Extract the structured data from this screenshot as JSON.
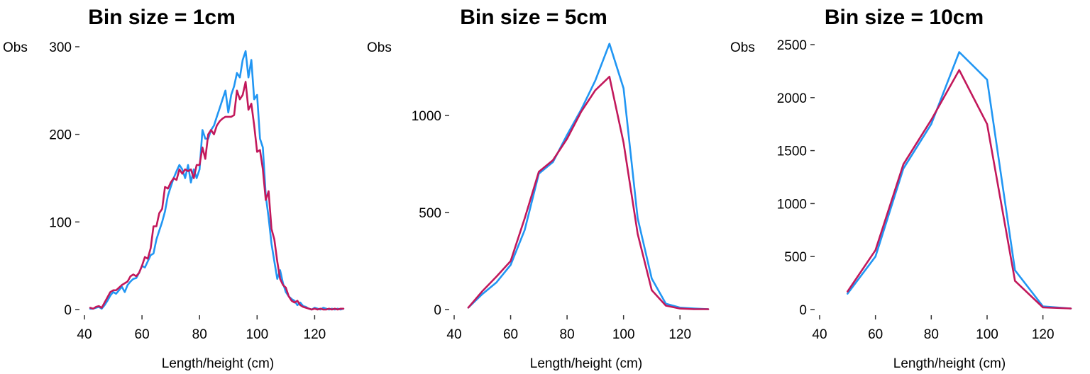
{
  "colors": {
    "series_blue": "#2196F3",
    "series_red": "#C2185B"
  },
  "chart_data": [
    {
      "type": "line",
      "title": "Bin size = 1cm",
      "xlabel": "Length/height (cm)",
      "ylabel": "Obs",
      "xlim": [
        40,
        131
      ],
      "ylim": [
        0,
        300
      ],
      "xticks": [
        40,
        60,
        80,
        100,
        120
      ],
      "yticks": [
        0,
        100,
        200,
        300
      ],
      "grid": false,
      "legend": "none",
      "series": [
        {
          "color": "#2196F3",
          "x": [
            42,
            43,
            44,
            45,
            46,
            47,
            48,
            49,
            50,
            51,
            52,
            53,
            54,
            55,
            56,
            57,
            58,
            59,
            60,
            61,
            62,
            63,
            64,
            65,
            66,
            67,
            68,
            69,
            70,
            71,
            72,
            73,
            74,
            75,
            76,
            77,
            78,
            79,
            80,
            81,
            82,
            83,
            84,
            85,
            86,
            87,
            88,
            89,
            90,
            91,
            92,
            93,
            94,
            95,
            96,
            97,
            98,
            99,
            100,
            101,
            102,
            103,
            104,
            105,
            106,
            107,
            108,
            109,
            110,
            111,
            112,
            113,
            114,
            115,
            116,
            117,
            118,
            119,
            120,
            121,
            122,
            123,
            124,
            125,
            126,
            127,
            128,
            129,
            130
          ],
          "y": [
            1,
            1,
            2,
            3,
            1,
            5,
            10,
            16,
            20,
            18,
            22,
            26,
            20,
            28,
            32,
            35,
            36,
            42,
            50,
            48,
            55,
            62,
            64,
            80,
            90,
            100,
            112,
            130,
            140,
            150,
            158,
            165,
            160,
            150,
            165,
            145,
            160,
            150,
            160,
            205,
            195,
            195,
            205,
            210,
            220,
            230,
            240,
            250,
            225,
            245,
            255,
            270,
            265,
            285,
            295,
            265,
            285,
            240,
            245,
            195,
            185,
            130,
            105,
            75,
            55,
            35,
            45,
            30,
            20,
            15,
            12,
            10,
            5,
            8,
            4,
            3,
            1,
            0,
            2,
            1,
            0,
            2,
            1,
            0,
            1,
            0,
            1,
            0,
            1
          ]
        },
        {
          "color": "#C2185B",
          "x": [
            42,
            43,
            44,
            45,
            46,
            47,
            48,
            49,
            50,
            51,
            52,
            53,
            54,
            55,
            56,
            57,
            58,
            59,
            60,
            61,
            62,
            63,
            64,
            65,
            66,
            67,
            68,
            69,
            70,
            71,
            72,
            73,
            74,
            75,
            76,
            77,
            78,
            79,
            80,
            81,
            82,
            83,
            84,
            85,
            86,
            87,
            88,
            89,
            90,
            91,
            92,
            93,
            94,
            95,
            96,
            97,
            98,
            99,
            100,
            101,
            102,
            103,
            104,
            105,
            106,
            107,
            108,
            109,
            110,
            111,
            112,
            113,
            114,
            115,
            116,
            117,
            118,
            119,
            120,
            121,
            122,
            123,
            124,
            125,
            126,
            127,
            128,
            129,
            130
          ],
          "y": [
            2,
            1,
            3,
            4,
            2,
            8,
            14,
            20,
            22,
            22,
            25,
            28,
            30,
            32,
            38,
            40,
            38,
            42,
            50,
            60,
            58,
            70,
            95,
            95,
            110,
            115,
            140,
            138,
            145,
            150,
            148,
            160,
            155,
            160,
            158,
            160,
            150,
            165,
            165,
            185,
            172,
            200,
            205,
            200,
            210,
            215,
            218,
            220,
            220,
            220,
            222,
            250,
            240,
            245,
            260,
            228,
            235,
            210,
            180,
            182,
            160,
            125,
            135,
            92,
            80,
            55,
            35,
            28,
            25,
            15,
            10,
            8,
            10,
            5,
            3,
            2,
            1,
            0,
            1,
            0,
            1,
            0,
            0,
            1,
            0,
            1,
            0,
            1,
            1
          ]
        }
      ]
    },
    {
      "type": "line",
      "title": "Bin size = 5cm",
      "xlabel": "Length/height (cm)",
      "ylabel": "Obs",
      "xlim": [
        40,
        130
      ],
      "ylim": [
        0,
        1420
      ],
      "xticks": [
        40,
        60,
        80,
        100,
        120
      ],
      "yticks": [
        0,
        500,
        1000
      ],
      "grid": false,
      "legend": "none",
      "series": [
        {
          "color": "#2196F3",
          "x": [
            45,
            50,
            55,
            60,
            65,
            70,
            75,
            80,
            85,
            90,
            95,
            100,
            105,
            110,
            115,
            120,
            125,
            130
          ],
          "y": [
            10,
            80,
            140,
            230,
            410,
            700,
            760,
            900,
            1030,
            1180,
            1370,
            1140,
            470,
            160,
            30,
            10,
            5,
            2
          ]
        },
        {
          "color": "#C2185B",
          "x": [
            45,
            50,
            55,
            60,
            65,
            70,
            75,
            80,
            85,
            90,
            95,
            100,
            105,
            110,
            115,
            120,
            125,
            130
          ],
          "y": [
            10,
            95,
            170,
            250,
            470,
            710,
            770,
            880,
            1020,
            1130,
            1200,
            860,
            390,
            100,
            20,
            5,
            2,
            2
          ]
        }
      ]
    },
    {
      "type": "line",
      "title": "Bin size = 10cm",
      "xlabel": "Length/height (cm)",
      "ylabel": "Obs",
      "xlim": [
        40,
        130
      ],
      "ylim": [
        0,
        2500
      ],
      "xticks": [
        40,
        60,
        80,
        100,
        120
      ],
      "yticks": [
        0,
        500,
        1000,
        1500,
        2000,
        2500
      ],
      "grid": false,
      "legend": "none",
      "series": [
        {
          "color": "#2196F3",
          "x": [
            50,
            60,
            70,
            80,
            90,
            100,
            110,
            120,
            130
          ],
          "y": [
            150,
            500,
            1330,
            1750,
            2430,
            2170,
            370,
            30,
            10
          ]
        },
        {
          "color": "#C2185B",
          "x": [
            50,
            60,
            70,
            80,
            90,
            100,
            110,
            120,
            130
          ],
          "y": [
            170,
            560,
            1370,
            1790,
            2260,
            1750,
            270,
            20,
            10
          ]
        }
      ]
    }
  ]
}
